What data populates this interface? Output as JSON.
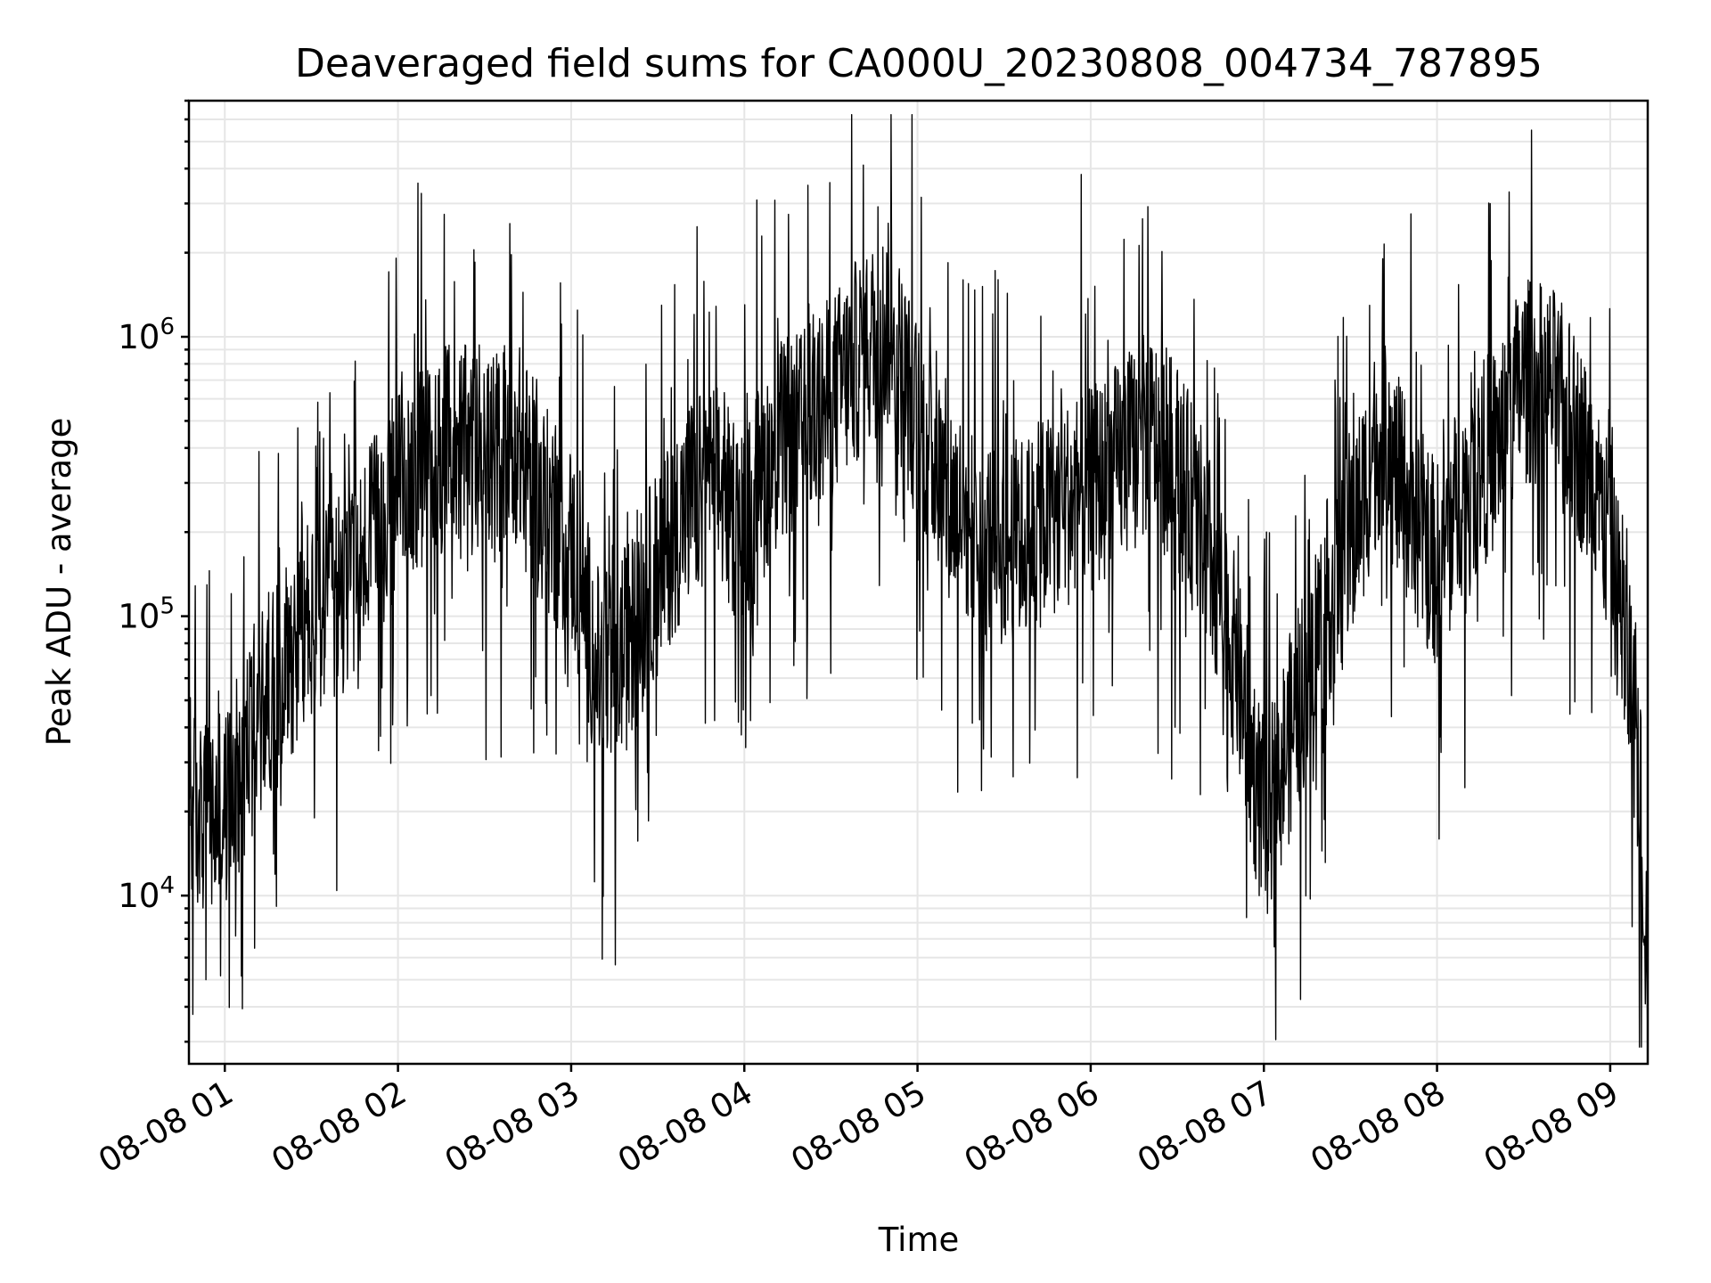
{
  "chart_data": {
    "type": "line",
    "title": "Deaveraged field sums for CA000U_20230808_004734_787895",
    "xlabel": "Time",
    "ylabel": "Peak ADU - average",
    "yscale": "log",
    "ylim": [
      2500,
      7000000
    ],
    "xlim": [
      "2023-08-08 00:47:34",
      "2023-08-08 09:13:00"
    ],
    "grid": true,
    "x_ticks": [
      {
        "time": "2023-08-08 01:00",
        "label": "08-08 01"
      },
      {
        "time": "2023-08-08 02:00",
        "label": "08-08 02"
      },
      {
        "time": "2023-08-08 03:00",
        "label": "08-08 03"
      },
      {
        "time": "2023-08-08 04:00",
        "label": "08-08 04"
      },
      {
        "time": "2023-08-08 05:00",
        "label": "08-08 05"
      },
      {
        "time": "2023-08-08 06:00",
        "label": "08-08 06"
      },
      {
        "time": "2023-08-08 07:00",
        "label": "08-08 07"
      },
      {
        "time": "2023-08-08 08:00",
        "label": "08-08 08"
      },
      {
        "time": "2023-08-08 09:00",
        "label": "08-08 09"
      }
    ],
    "y_ticks": [
      {
        "value": 10000,
        "base": "10",
        "exp": "4"
      },
      {
        "value": 100000,
        "base": "10",
        "exp": "5"
      },
      {
        "value": 1000000,
        "base": "10",
        "exp": "6"
      }
    ],
    "series": [
      {
        "color": "#000000",
        "x": [
          "2023-08-08 00:47:34",
          "2023-08-08 00:55",
          "2023-08-08 01:00",
          "2023-08-08 01:10",
          "2023-08-08 01:20",
          "2023-08-08 01:30",
          "2023-08-08 01:40",
          "2023-08-08 01:50",
          "2023-08-08 02:00",
          "2023-08-08 02:10",
          "2023-08-08 02:20",
          "2023-08-08 02:30",
          "2023-08-08 02:40",
          "2023-08-08 02:50",
          "2023-08-08 03:00",
          "2023-08-08 03:10",
          "2023-08-08 03:20",
          "2023-08-08 03:30",
          "2023-08-08 03:40",
          "2023-08-08 03:50",
          "2023-08-08 04:00",
          "2023-08-08 04:10",
          "2023-08-08 04:20",
          "2023-08-08 04:30",
          "2023-08-08 04:40",
          "2023-08-08 04:50",
          "2023-08-08 05:00",
          "2023-08-08 05:10",
          "2023-08-08 05:20",
          "2023-08-08 05:30",
          "2023-08-08 05:40",
          "2023-08-08 05:50",
          "2023-08-08 06:00",
          "2023-08-08 06:10",
          "2023-08-08 06:20",
          "2023-08-08 06:30",
          "2023-08-08 06:40",
          "2023-08-08 06:50",
          "2023-08-08 07:00",
          "2023-08-08 07:10",
          "2023-08-08 07:20",
          "2023-08-08 07:30",
          "2023-08-08 07:40",
          "2023-08-08 07:50",
          "2023-08-08 08:00",
          "2023-08-08 08:10",
          "2023-08-08 08:20",
          "2023-08-08 08:30",
          "2023-08-08 08:40",
          "2023-08-08 08:50",
          "2023-08-08 09:00",
          "2023-08-08 09:05",
          "2023-08-08 09:10",
          "2023-08-08 09:13"
        ],
        "y": [
          20000,
          18000,
          20000,
          40000,
          70000,
          90000,
          120000,
          170000,
          280000,
          350000,
          420000,
          350000,
          450000,
          250000,
          180000,
          60000,
          80000,
          150000,
          250000,
          300000,
          200000,
          400000,
          450000,
          600000,
          850000,
          1100000,
          500000,
          280000,
          200000,
          180000,
          200000,
          250000,
          280000,
          350000,
          450000,
          350000,
          180000,
          70000,
          18000,
          40000,
          100000,
          180000,
          450000,
          250000,
          150000,
          300000,
          400000,
          700000,
          650000,
          400000,
          180000,
          80000,
          30000,
          5000
        ]
      }
    ]
  }
}
